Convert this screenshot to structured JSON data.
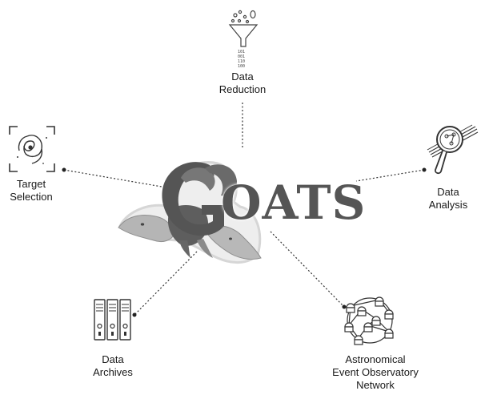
{
  "logo": {
    "text": "OATS"
  },
  "nodes": {
    "data_reduction": {
      "line1": "Data",
      "line2": "Reduction",
      "icon": "funnel-icon"
    },
    "target_selection": {
      "line1": "Target",
      "line2": "Selection",
      "icon": "galaxy-target-icon"
    },
    "data_analysis": {
      "line1": "Data",
      "line2": "Analysis",
      "icon": "magnifier-icon"
    },
    "data_archives": {
      "line1": "Data",
      "line2": "Archives",
      "icon": "server-rack-icon"
    },
    "network": {
      "line1": "Astronomical",
      "line2": "Event Observatory",
      "line3": "Network",
      "icon": "observatory-network-icon"
    }
  },
  "colors": {
    "logo_fill": "#555555",
    "logo_light": "#9a9a9a",
    "line": "#333333",
    "icon": "#444444"
  }
}
